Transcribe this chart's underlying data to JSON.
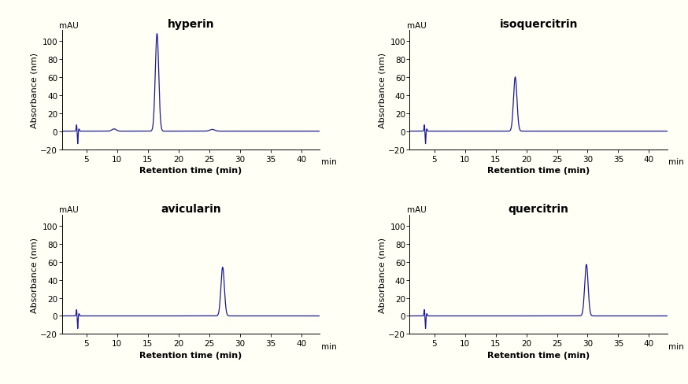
{
  "panels": [
    {
      "title": "hyperin",
      "peak_time": 16.5,
      "peak_height": 108,
      "noise_time": 3.5,
      "noise_height": 7,
      "small_peak_time": 9.5,
      "small_peak_height": 2.5,
      "post_peak_time": 25.5,
      "post_peak_height": 2.0,
      "ylim": [
        -20,
        112
      ],
      "yticks": [
        -20,
        0,
        20,
        40,
        60,
        80,
        100
      ]
    },
    {
      "title": "isoquercitrin",
      "peak_time": 18.2,
      "peak_height": 60,
      "noise_time": 3.5,
      "noise_height": 7,
      "small_peak_time": null,
      "small_peak_height": null,
      "post_peak_time": null,
      "post_peak_height": null,
      "ylim": [
        -20,
        112
      ],
      "yticks": [
        -20,
        0,
        20,
        40,
        60,
        80,
        100
      ]
    },
    {
      "title": "avicularin",
      "peak_time": 27.2,
      "peak_height": 54,
      "noise_time": 3.5,
      "noise_height": 7,
      "small_peak_time": null,
      "small_peak_height": null,
      "post_peak_time": null,
      "post_peak_height": null,
      "ylim": [
        -20,
        112
      ],
      "yticks": [
        -20,
        0,
        20,
        40,
        60,
        80,
        100
      ]
    },
    {
      "title": "quercitrin",
      "peak_time": 29.8,
      "peak_height": 57,
      "noise_time": 3.5,
      "noise_height": 7,
      "small_peak_time": null,
      "small_peak_height": null,
      "post_peak_time": null,
      "post_peak_height": null,
      "ylim": [
        -20,
        112
      ],
      "yticks": [
        -20,
        0,
        20,
        40,
        60,
        80,
        100
      ]
    }
  ],
  "line_color": "#1a1a9c",
  "xlim": [
    1,
    43
  ],
  "xticks": [
    5,
    10,
    15,
    20,
    25,
    30,
    35,
    40
  ],
  "xlabel": "Retention time (min)",
  "ylabel": "Absorbance (nm)",
  "mau_label": "mAU",
  "bg_color": "#fffff5",
  "title_fontsize": 10,
  "tick_fontsize": 7.5,
  "axis_label_fontsize": 8
}
